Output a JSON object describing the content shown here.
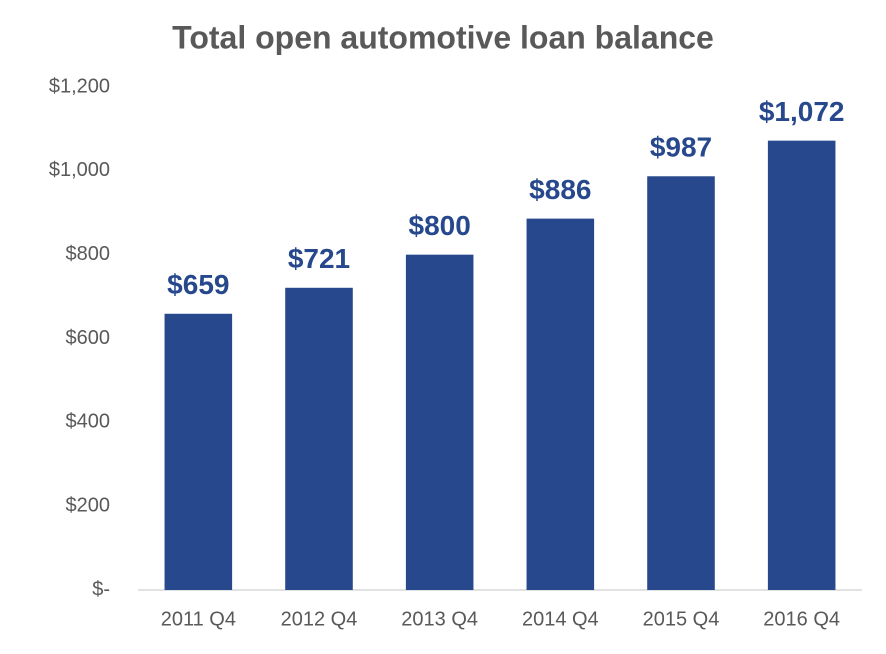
{
  "chart_data": {
    "type": "bar",
    "title": "Total open automotive loan balance",
    "categories": [
      "2011 Q4",
      "2012 Q4",
      "2013 Q4",
      "2014 Q4",
      "2015 Q4",
      "2016 Q4"
    ],
    "values": [
      659,
      721,
      800,
      886,
      987,
      1072
    ],
    "value_labels": [
      "$659",
      "$721",
      "$800",
      "$886",
      "$987",
      "$1,072"
    ],
    "color": "#27488c",
    "ylim": [
      0,
      1200
    ],
    "yticks": [
      {
        "value": 0,
        "label": "$-"
      },
      {
        "value": 200,
        "label": "$200"
      },
      {
        "value": 400,
        "label": "$400"
      },
      {
        "value": 600,
        "label": "$600"
      },
      {
        "value": 800,
        "label": "$800"
      },
      {
        "value": 1000,
        "label": "$1,000"
      },
      {
        "value": 1200,
        "label": "$1,200"
      }
    ],
    "grid": false
  }
}
